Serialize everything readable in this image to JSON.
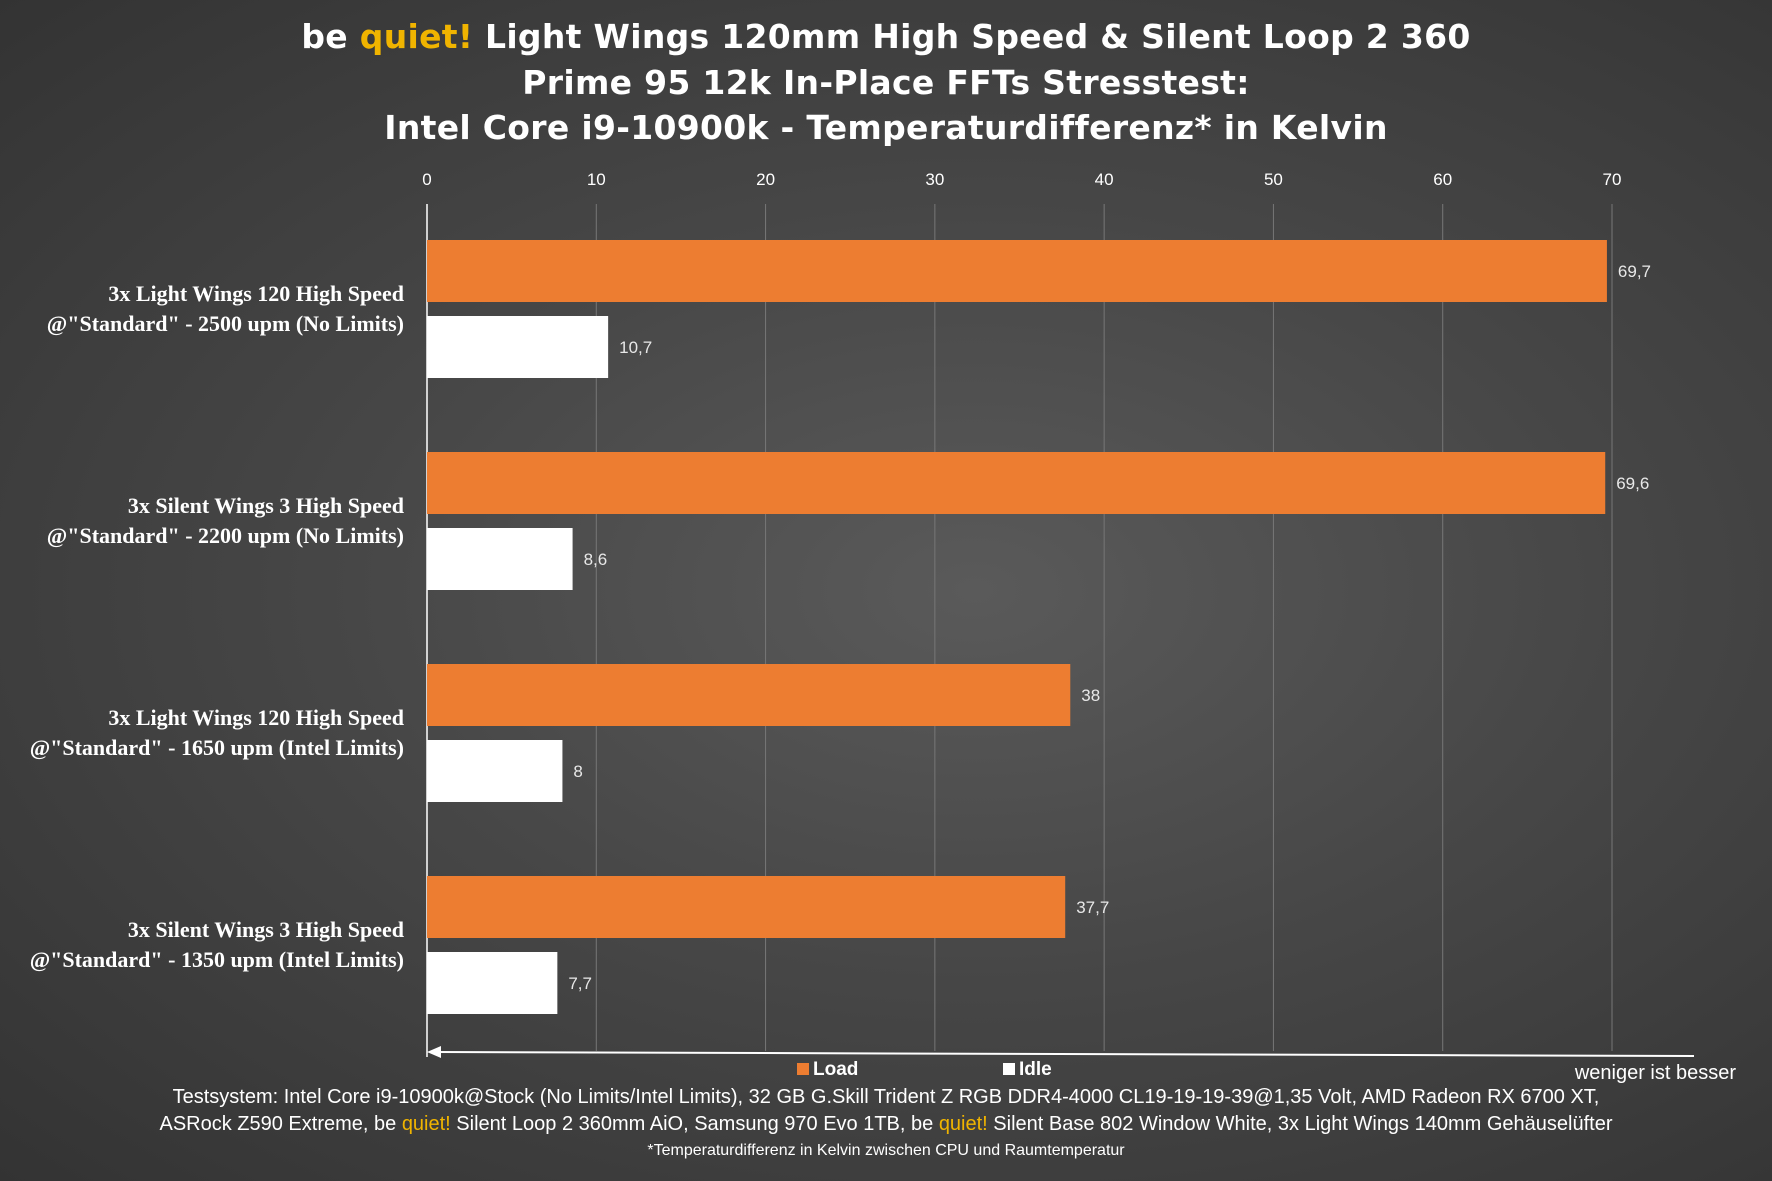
{
  "title": {
    "line1_pre": "be ",
    "line1_accent": "quiet!",
    "line1_post": " Light Wings 120mm High Speed & Silent Loop 2 360",
    "line2": "Prime 95 12k In-Place FFTs Stresstest:",
    "line3": "Intel Core i9-10900k - Temperaturdifferenz* in Kelvin"
  },
  "colors": {
    "load": "#ed7d31",
    "idle": "#ffffff",
    "accent": "#f0b400"
  },
  "legend": {
    "load": "Load",
    "idle": "Idle",
    "position": "bottom"
  },
  "hint": "weniger ist besser",
  "footer": {
    "line1": "Testsystem: Intel Core i9-10900k@Stock (No Limits/Intel Limits), 32 GB G.Skill Trident Z RGB DDR4-4000 CL19-19-19-39@1,35 Volt, AMD Radeon RX 6700 XT,",
    "line2_a": "ASRock Z590 Extreme, be ",
    "line2_accent1": "quiet!",
    "line2_b": " Silent Loop 2 360mm AiO, Samsung 970 Evo 1TB, be ",
    "line2_accent2": "quiet!",
    "line2_c": " Silent Base 802 Window White, 3x Light Wings 140mm Gehäuselüfter",
    "line3": "*Temperaturdifferenz in Kelvin zwischen CPU und Raumtemperatur"
  },
  "chart_data": {
    "type": "bar",
    "orientation": "horizontal",
    "xlim": [
      0,
      70
    ],
    "xticks": [
      0,
      10,
      20,
      30,
      40,
      50,
      60,
      70
    ],
    "xtick_labels": [
      "0",
      "10",
      "20",
      "30",
      "40",
      "50",
      "60",
      "70"
    ],
    "grid": true,
    "categories": [
      [
        "3x Light Wings 120 High Speed",
        "@\"Standard\" - 2500 upm (No Limits)"
      ],
      [
        "3x Silent Wings 3 High Speed",
        "@\"Standard\" - 2200 upm (No Limits)"
      ],
      [
        "3x Light Wings 120 High Speed",
        "@\"Standard\" - 1650 upm (Intel Limits)"
      ],
      [
        "3x Silent Wings 3 High Speed",
        "@\"Standard\" - 1350 upm (Intel Limits)"
      ]
    ],
    "series": [
      {
        "name": "Load",
        "values": [
          69.7,
          69.6,
          38,
          37.7
        ],
        "labels": [
          "69,7",
          "69,6",
          "38",
          "37,7"
        ]
      },
      {
        "name": "Idle",
        "values": [
          10.7,
          8.6,
          8,
          7.7
        ],
        "labels": [
          "10,7",
          "8,6",
          "8",
          "7,7"
        ]
      }
    ]
  }
}
